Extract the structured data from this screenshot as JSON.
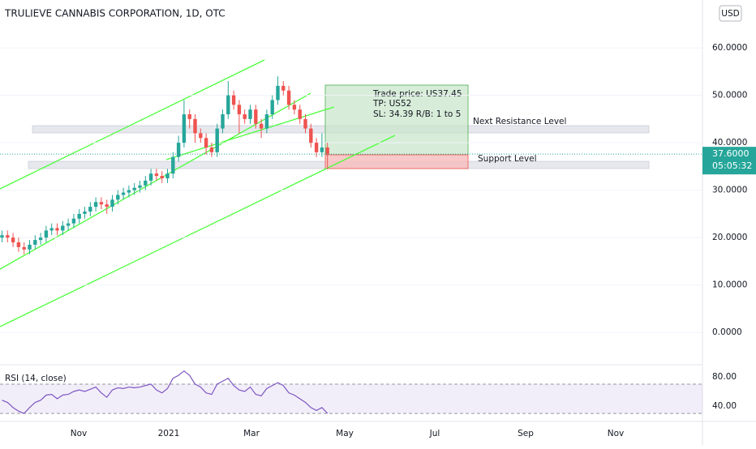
{
  "chart_data": {
    "type": "candlestick",
    "title": "TRULIEVE CANNABIS CORPORATION, 1D, OTC",
    "currency_button": "USD",
    "categories": [
      null,
      null,
      null,
      null,
      null,
      null,
      null,
      null,
      null,
      null,
      null,
      null,
      null,
      null,
      null,
      null,
      null,
      null,
      null,
      null,
      null,
      null,
      null,
      null,
      null,
      null,
      null,
      null,
      null,
      null,
      null,
      null,
      null,
      null,
      null,
      null,
      null,
      null,
      null,
      null,
      null,
      null,
      null,
      null,
      null,
      null,
      null,
      null,
      null,
      null,
      null,
      null,
      null,
      null,
      null,
      null,
      null,
      null,
      null,
      null
    ],
    "open": [
      20,
      20.5,
      20,
      19,
      18,
      17.5,
      18.5,
      19.5,
      20,
      21.5,
      22,
      21.5,
      22.5,
      23,
      24,
      25,
      25.5,
      26.5,
      27.5,
      27,
      26.5,
      28,
      29,
      29.5,
      30,
      30.5,
      31,
      32,
      33.5,
      33,
      32.5,
      33.5,
      37,
      40,
      46,
      45,
      42,
      41,
      39,
      38,
      43,
      46,
      50,
      48,
      46,
      45,
      47,
      44,
      43,
      46,
      49,
      52,
      51,
      48,
      47,
      45,
      43,
      40,
      38,
      39
    ],
    "high": [
      21.5,
      21.5,
      21,
      20,
      19,
      19.5,
      20.5,
      21,
      22.5,
      23,
      23,
      23.5,
      24,
      25,
      26,
      26.5,
      27.5,
      28.5,
      28.5,
      28,
      29,
      30,
      30.5,
      31,
      31.5,
      32,
      33,
      34.5,
      34.5,
      34,
      34.5,
      38,
      41.5,
      49,
      47,
      46,
      43,
      42,
      40,
      44,
      47,
      53,
      51,
      49,
      47,
      48,
      48,
      45,
      47,
      50,
      54,
      53,
      52,
      49,
      48,
      46,
      44,
      41,
      42,
      40
    ],
    "low": [
      19,
      19,
      18,
      17,
      16.5,
      16.5,
      17.5,
      18.5,
      19,
      20.5,
      20.5,
      20.5,
      21.5,
      22,
      23,
      24,
      24.5,
      25.5,
      26,
      25,
      25.5,
      27,
      28,
      28.5,
      29,
      29.5,
      30,
      31,
      32,
      31.5,
      31.5,
      32.5,
      36,
      39,
      43,
      40,
      40,
      37.5,
      37,
      37,
      42,
      45,
      47,
      42,
      44,
      44,
      43,
      41,
      42,
      45,
      48,
      50,
      47,
      46,
      44,
      42,
      39,
      37,
      37,
      34.4
    ],
    "close": [
      20.5,
      20,
      19,
      18,
      17.5,
      18.5,
      19.5,
      20,
      21.5,
      22,
      21.5,
      22.5,
      23,
      24,
      25,
      25.5,
      26.5,
      27.5,
      27,
      26.5,
      28,
      29,
      29.5,
      30,
      30.5,
      31,
      32,
      33.5,
      33,
      32.5,
      33.5,
      37,
      40,
      46,
      45,
      42,
      41,
      39,
      38,
      43,
      46,
      50,
      48,
      46,
      45,
      47,
      44,
      43,
      46,
      49,
      52,
      51,
      48,
      47,
      45,
      43,
      40,
      38,
      39,
      37.6
    ],
    "up_color": "#26a69a",
    "down_color": "#ef5350",
    "ylim": [
      -6.8,
      70.1
    ],
    "yticks": [
      {
        "value": 0,
        "label": "0.0000"
      },
      {
        "value": 10,
        "label": "10.0000"
      },
      {
        "value": 20,
        "label": "20.0000"
      },
      {
        "value": 30,
        "label": "30.0000"
      },
      {
        "value": 40,
        "label": "40.0000"
      },
      {
        "value": 50,
        "label": "50.0000"
      },
      {
        "value": 60,
        "label": "60.0000"
      }
    ],
    "last_price": {
      "value": 37.6,
      "label": "37.6000"
    },
    "countdown": "05:05:32",
    "time_labels": [
      "Nov",
      "2021",
      "Mar",
      "May",
      "Jul",
      "Sep",
      "Nov"
    ],
    "annotations": {
      "trade": [
        "Trade price: US37.45",
        "TP: US52",
        "SL: 34.39 R/B: 1 to 5"
      ],
      "resistance": "Next Resistance Level",
      "support": "Support Level"
    },
    "rsi": {
      "label": "RSI (14, close)",
      "color": "#7e57c2",
      "values": [
        48,
        45,
        38,
        33,
        30,
        38,
        45,
        48,
        55,
        56,
        50,
        55,
        56,
        60,
        62,
        60,
        63,
        66,
        58,
        52,
        62,
        65,
        64,
        66,
        65,
        66,
        68,
        70,
        62,
        58,
        64,
        78,
        82,
        88,
        82,
        70,
        66,
        58,
        56,
        70,
        74,
        78,
        68,
        62,
        60,
        66,
        56,
        54,
        64,
        68,
        72,
        68,
        58,
        55,
        50,
        45,
        38,
        34,
        38,
        30
      ],
      "ylim": [
        19,
        91
      ],
      "yticks": [
        {
          "value": 40,
          "label": "40.00"
        },
        {
          "value": 80,
          "label": "80.00"
        }
      ],
      "bands": [
        30,
        70
      ]
    }
  }
}
